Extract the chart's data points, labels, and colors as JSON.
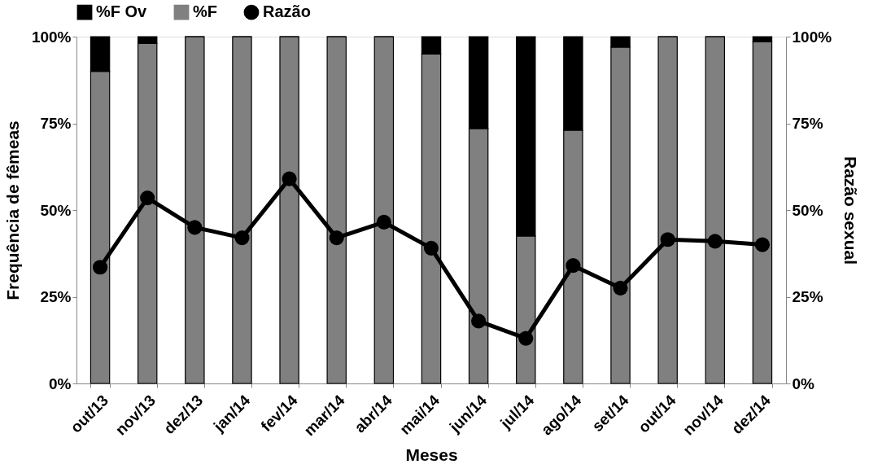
{
  "chart_data": {
    "type": "bar",
    "stacked": true,
    "xlabel": "Meses",
    "ylabel": "Frequência de fêmeas",
    "y2label": "Razão sexual",
    "categories": [
      "out/13",
      "nov/13",
      "dez/13",
      "jan/14",
      "fev/14",
      "mar/14",
      "abr/14",
      "mai/14",
      "jun/14",
      "jul/14",
      "ago/14",
      "set/14",
      "out/14",
      "nov/14",
      "dez/14"
    ],
    "series": [
      {
        "name": "%F",
        "color": "#808080",
        "values": [
          90,
          98,
          100,
          100,
          100,
          100,
          100,
          95,
          73.5,
          42.5,
          73,
          97,
          100,
          100,
          98.5
        ]
      },
      {
        "name": "%F Ov",
        "color": "#000000",
        "values": [
          10,
          2,
          0,
          0,
          0,
          0,
          0,
          5,
          26.5,
          57.5,
          27,
          3,
          0,
          0,
          1.5
        ]
      },
      {
        "name": "Razão",
        "type": "line",
        "axis": "y2",
        "color": "#000000",
        "marker": "circle",
        "line_style": "solid",
        "values": [
          33.5,
          53.5,
          45,
          42,
          59,
          42,
          46.5,
          39,
          18,
          13,
          34,
          27.5,
          41.5,
          41,
          40
        ]
      }
    ],
    "ylim": [
      0,
      100
    ],
    "yticks": [
      {
        "value": 0,
        "label": "0%"
      },
      {
        "value": 25,
        "label": "25%"
      },
      {
        "value": 50,
        "label": "50%"
      },
      {
        "value": 75,
        "label": "75%"
      },
      {
        "value": 100,
        "label": "100%"
      }
    ],
    "y2lim": [
      0,
      100
    ],
    "y2ticks": [
      {
        "value": 0,
        "label": "0%"
      },
      {
        "value": 25,
        "label": "25%"
      },
      {
        "value": 50,
        "label": "50%"
      },
      {
        "value": 75,
        "label": "75%"
      },
      {
        "value": 100,
        "label": "100%"
      }
    ],
    "grid": false,
    "legend": "top"
  }
}
